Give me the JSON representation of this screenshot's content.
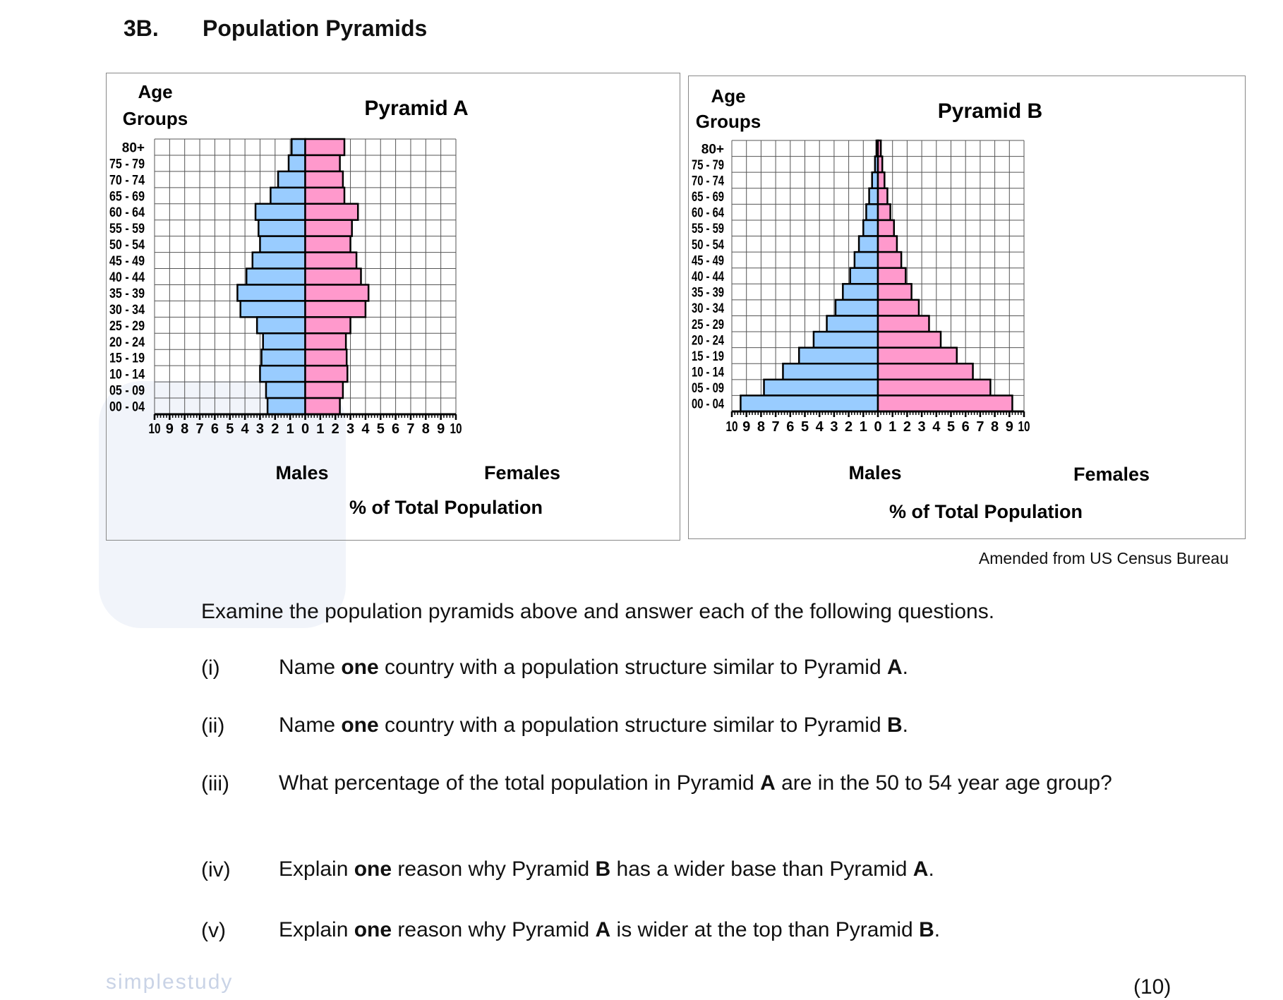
{
  "header": {
    "number": "3B.",
    "title": "Population Pyramids"
  },
  "watermark": "simplestudy",
  "source": "Amended from US Census Bureau",
  "chart_data": [
    {
      "type": "bar",
      "orientation": "horizontal-pyramid",
      "title": "Pyramid A",
      "ylabel": [
        "Age",
        "Groups"
      ],
      "xlabel": "% of Total Population",
      "side_labels": {
        "left": "Males",
        "right": "Females"
      },
      "xlim": [
        -10,
        10
      ],
      "tick_labels": [
        "10",
        "9",
        "8",
        "7",
        "6",
        "5",
        "4",
        "3",
        "2",
        "1",
        "0",
        "1",
        "2",
        "3",
        "4",
        "5",
        "6",
        "7",
        "8",
        "9",
        "10"
      ],
      "grid": true,
      "categories": [
        "80+",
        "75 - 79",
        "70 - 74",
        "65 - 69",
        "60 - 64",
        "55 - 59",
        "50 - 54",
        "45 - 49",
        "40 - 44",
        "35 - 39",
        "30 - 34",
        "25 - 29",
        "20 - 24",
        "15 - 19",
        "10 - 14",
        "05 - 09",
        "00 - 04"
      ],
      "series": [
        {
          "name": "Males",
          "color": "#99ccff",
          "values": [
            0.9,
            1.1,
            1.8,
            2.3,
            3.3,
            3.1,
            3.0,
            3.5,
            3.9,
            4.5,
            4.3,
            3.2,
            2.8,
            2.9,
            3.0,
            2.6,
            2.5
          ]
        },
        {
          "name": "Females",
          "color": "#ff99cc",
          "values": [
            2.6,
            2.3,
            2.5,
            2.6,
            3.5,
            3.1,
            3.0,
            3.4,
            3.7,
            4.2,
            4.0,
            3.0,
            2.7,
            2.75,
            2.8,
            2.5,
            2.3
          ]
        }
      ]
    },
    {
      "type": "bar",
      "orientation": "horizontal-pyramid",
      "title": "Pyramid B",
      "ylabel": [
        "Age",
        "Groups"
      ],
      "xlabel": "% of Total Population",
      "side_labels": {
        "left": "Males",
        "right": "Females"
      },
      "xlim": [
        -10,
        10
      ],
      "tick_labels": [
        "10",
        "9",
        "8",
        "7",
        "6",
        "5",
        "4",
        "3",
        "2",
        "1",
        "0",
        "1",
        "2",
        "3",
        "4",
        "5",
        "6",
        "7",
        "8",
        "9",
        "10"
      ],
      "grid": true,
      "categories": [
        "80+",
        "75 - 79",
        "70 - 74",
        "65 - 69",
        "60 - 64",
        "55 - 59",
        "50 - 54",
        "45 - 49",
        "40 - 44",
        "35 - 39",
        "30 - 34",
        "25 - 29",
        "20 - 24",
        "15 - 19",
        "10 - 14",
        "05 - 09",
        "00 - 04"
      ],
      "series": [
        {
          "name": "Males",
          "color": "#99ccff",
          "values": [
            0.1,
            0.2,
            0.4,
            0.6,
            0.8,
            1.0,
            1.3,
            1.6,
            1.9,
            2.4,
            2.9,
            3.5,
            4.4,
            5.4,
            6.5,
            7.8,
            9.4
          ]
        },
        {
          "name": "Females",
          "color": "#ff99cc",
          "values": [
            0.2,
            0.3,
            0.45,
            0.65,
            0.85,
            1.1,
            1.3,
            1.6,
            1.9,
            2.3,
            2.8,
            3.5,
            4.3,
            5.4,
            6.5,
            7.7,
            9.2
          ]
        }
      ]
    }
  ],
  "intro": "Examine the population pyramids above and answer each of the following questions.",
  "questions": [
    {
      "num": "(i)",
      "parts": [
        "Name ",
        "one",
        " country with a population structure similar to Pyramid ",
        "A",
        "."
      ]
    },
    {
      "num": "(ii)",
      "parts": [
        "Name ",
        "one",
        " country with a population structure similar to Pyramid ",
        "B",
        "."
      ]
    },
    {
      "num": "(iii)",
      "parts": [
        "What percentage of the total population in Pyramid ",
        "A",
        " are in the 50 to 54 year age group?",
        "",
        ""
      ]
    },
    {
      "num": "(iv)",
      "parts": [
        "Explain ",
        "one",
        " reason why Pyramid ",
        "B",
        " has a wider base than Pyramid ",
        "A",
        "."
      ]
    },
    {
      "num": "(v)",
      "parts": [
        "Explain ",
        "one",
        " reason why Pyramid ",
        "A",
        " is wider at the top than Pyramid ",
        "B",
        "."
      ]
    }
  ],
  "marks": "(10)"
}
